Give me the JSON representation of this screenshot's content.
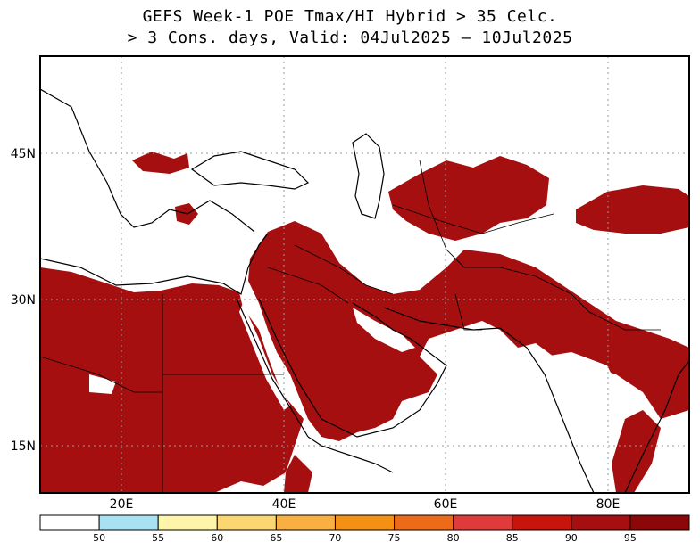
{
  "title": {
    "line1": "GEFS Week-1 POE Tmax/HI Hybrid > 35 Celc.",
    "line2": "> 3 Cons. days, Valid: 04Jul2025 — 10Jul2025"
  },
  "map": {
    "region": "Middle East, North Africa, Central and South Asia",
    "lon_range": [
      10,
      90
    ],
    "lat_range": [
      10,
      54
    ],
    "lon_ticks": [
      {
        "value": 20,
        "label": "20E"
      },
      {
        "value": 40,
        "label": "40E"
      },
      {
        "value": 60,
        "label": "60E"
      },
      {
        "value": 80,
        "label": "80E"
      }
    ],
    "lat_ticks": [
      {
        "value": 45,
        "label": "45N"
      },
      {
        "value": 30,
        "label": "30N"
      },
      {
        "value": 15,
        "label": "15N"
      }
    ],
    "grid": true,
    "shade_color": "#a50f0f",
    "dominant_category": "95"
  },
  "colorbar": {
    "labels": [
      "50",
      "55",
      "60",
      "65",
      "70",
      "75",
      "80",
      "85",
      "90",
      "95"
    ],
    "colors": [
      "#ffffff",
      "#a8e1f2",
      "#fff5a8",
      "#fbd672",
      "#f8b043",
      "#f39114",
      "#ec6b1b",
      "#e03b3b",
      "#c8150c",
      "#a50f0f",
      "#8c0808"
    ]
  }
}
